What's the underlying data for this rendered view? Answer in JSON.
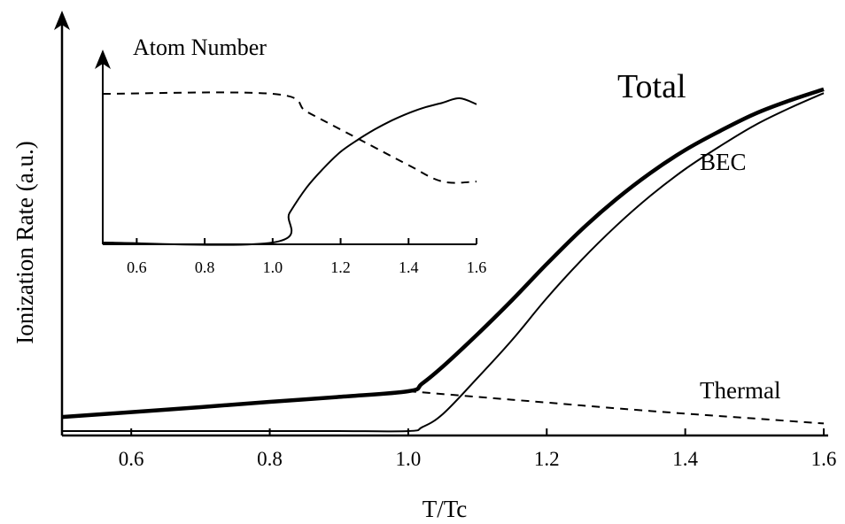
{
  "chart_data": [
    {
      "type": "line",
      "title": "",
      "xlabel": "T/Tc",
      "ylabel": "Ionization Rate (a.u.)",
      "xlim": [
        0.5,
        1.6
      ],
      "ylim": [
        0,
        1
      ],
      "x_ticks": [
        "0.6",
        "0.8",
        "1.0",
        "1.2",
        "1.4",
        "1.6"
      ],
      "y_ticks_shown": false,
      "series": [
        {
          "name": "Total",
          "style": "thick-solid",
          "x": [
            0.5,
            0.6,
            0.7,
            0.8,
            0.9,
            1.0,
            1.02,
            1.05,
            1.1,
            1.15,
            1.2,
            1.25,
            1.3,
            1.35,
            1.4,
            1.45,
            1.5,
            1.55,
            1.6
          ],
          "y": [
            0.037,
            0.05,
            0.063,
            0.077,
            0.09,
            0.105,
            0.125,
            0.17,
            0.255,
            0.345,
            0.44,
            0.53,
            0.61,
            0.68,
            0.74,
            0.79,
            0.835,
            0.87,
            0.9
          ]
        },
        {
          "name": "BEC",
          "style": "thin-solid",
          "x": [
            0.5,
            0.6,
            0.7,
            0.8,
            0.9,
            1.0,
            1.02,
            1.05,
            1.1,
            1.15,
            1.2,
            1.25,
            1.3,
            1.35,
            1.4,
            1.45,
            1.5,
            1.55,
            1.6
          ],
          "y": [
            0.0,
            0.0,
            0.0,
            0.0,
            0.0,
            0.0,
            0.01,
            0.045,
            0.14,
            0.24,
            0.35,
            0.45,
            0.54,
            0.62,
            0.69,
            0.75,
            0.805,
            0.85,
            0.89
          ]
        },
        {
          "name": "Thermal",
          "style": "dashed",
          "x": [
            1.0,
            1.1,
            1.2,
            1.3,
            1.4,
            1.5,
            1.6
          ],
          "y": [
            0.105,
            0.09,
            0.075,
            0.06,
            0.046,
            0.033,
            0.02
          ]
        }
      ],
      "annotations": [
        "Total",
        "BEC",
        "Thermal"
      ],
      "grid": false
    },
    {
      "type": "line",
      "title": "Atom Number",
      "xlabel": "",
      "ylabel": "",
      "xlim": [
        0.5,
        1.6
      ],
      "ylim": [
        0,
        1
      ],
      "x_ticks": [
        "0.6",
        "0.8",
        "1.0",
        "1.2",
        "1.4",
        "1.6"
      ],
      "y_ticks_shown": false,
      "series": [
        {
          "style": "dashed",
          "x": [
            0.5,
            1.0,
            1.1,
            1.2,
            1.3,
            1.4,
            1.5,
            1.6
          ],
          "y": [
            1.0,
            1.0,
            0.88,
            0.76,
            0.64,
            0.52,
            0.41,
            0.41
          ]
        },
        {
          "style": "solid",
          "x": [
            0.5,
            1.0,
            1.05,
            1.1,
            1.15,
            1.2,
            1.25,
            1.3,
            1.35,
            1.4,
            1.45,
            1.5,
            1.55,
            1.6
          ],
          "y": [
            0.0,
            0.0,
            0.2,
            0.37,
            0.5,
            0.61,
            0.69,
            0.76,
            0.82,
            0.87,
            0.91,
            0.94,
            0.97,
            0.93
          ]
        }
      ],
      "grid": false
    }
  ]
}
